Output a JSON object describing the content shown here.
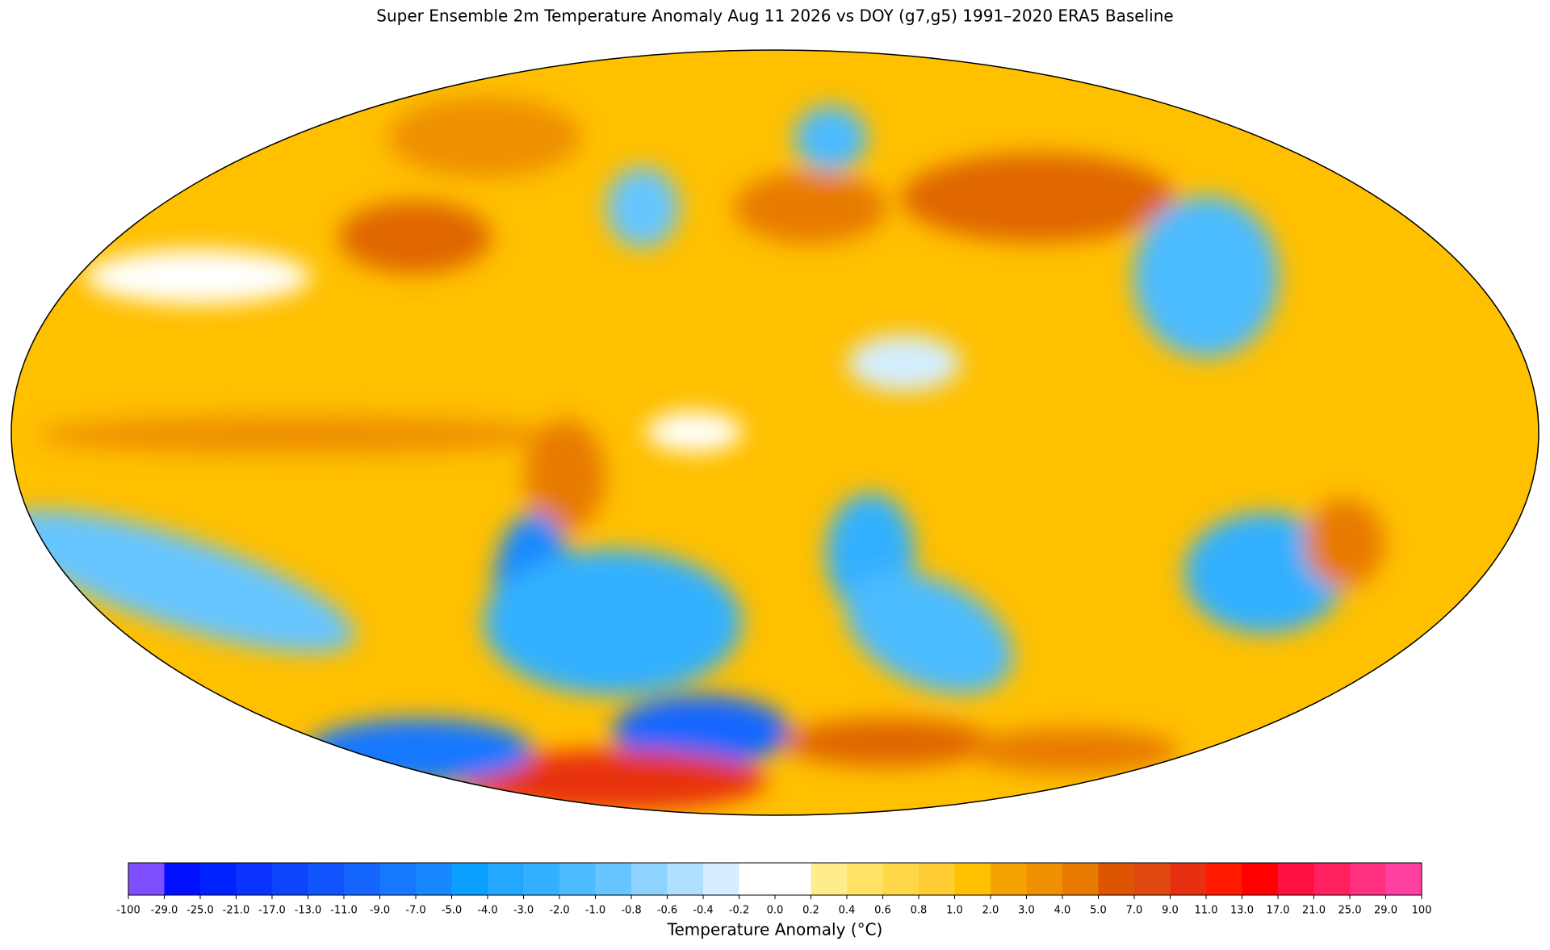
{
  "title": "Super Ensemble 2m Temperature Anomaly  Aug 11 2026  vs DOY (g7,g5) 1991–2020 ERA5 Baseline",
  "colorbar": {
    "label": "Temperature Anomaly (°C)",
    "ticks": [
      -100,
      {
        "value": -29,
        "label": "-29.0"
      },
      {
        "value": -25,
        "label": "-25.0"
      },
      {
        "value": -21,
        "label": "-21.0"
      },
      {
        "value": -17,
        "label": "-17.0"
      },
      {
        "value": -13,
        "label": "-13.0"
      },
      {
        "value": -11,
        "label": "-11.0"
      },
      {
        "value": -9,
        "label": "-9.0"
      },
      {
        "value": -7,
        "label": "-7.0"
      },
      {
        "value": -5,
        "label": "-5.0"
      },
      {
        "value": -4,
        "label": "-4.0"
      },
      {
        "value": -3,
        "label": "-3.0"
      },
      {
        "value": -2,
        "label": "-2.0"
      },
      {
        "value": -1,
        "label": "-1.0"
      },
      -0.8,
      -0.6,
      -0.4,
      -0.2,
      {
        "value": 0,
        "label": "0.0"
      },
      0.2,
      0.4,
      0.6,
      0.8,
      {
        "value": 1,
        "label": "1.0"
      },
      {
        "value": 2,
        "label": "2.0"
      },
      {
        "value": 3,
        "label": "3.0"
      },
      {
        "value": 4,
        "label": "4.0"
      },
      {
        "value": 5,
        "label": "5.0"
      },
      {
        "value": 7,
        "label": "7.0"
      },
      {
        "value": 9,
        "label": "9.0"
      },
      {
        "value": 11,
        "label": "11.0"
      },
      {
        "value": 13,
        "label": "13.0"
      },
      {
        "value": 17,
        "label": "17.0"
      },
      {
        "value": 21,
        "label": "21.0"
      },
      {
        "value": 25,
        "label": "25.0"
      },
      {
        "value": 29,
        "label": "29.0"
      },
      100
    ],
    "colors": [
      "#7f4fff",
      "#0010ff",
      "#0022ff",
      "#0a33ff",
      "#0f44ff",
      "#1155ff",
      "#1466ff",
      "#1677ff",
      "#1888ff",
      "#0aa0ff",
      "#22a8ff",
      "#33b0ff",
      "#4cbbff",
      "#66c5ff",
      "#8ed3ff",
      "#b0e0ff",
      "#d4eeff",
      "#ffffff",
      "#ffffff",
      "#ffec8c",
      "#ffe266",
      "#ffd84a",
      "#ffcd33",
      "#ffc000",
      "#f5a300",
      "#ee9000",
      "#e87a00",
      "#dd5500",
      "#e04a10",
      "#e83010",
      "#ff1a00",
      "#ff0000",
      "#ff1040",
      "#ff2060",
      "#ff3080",
      "#ff40a0"
    ]
  }
}
